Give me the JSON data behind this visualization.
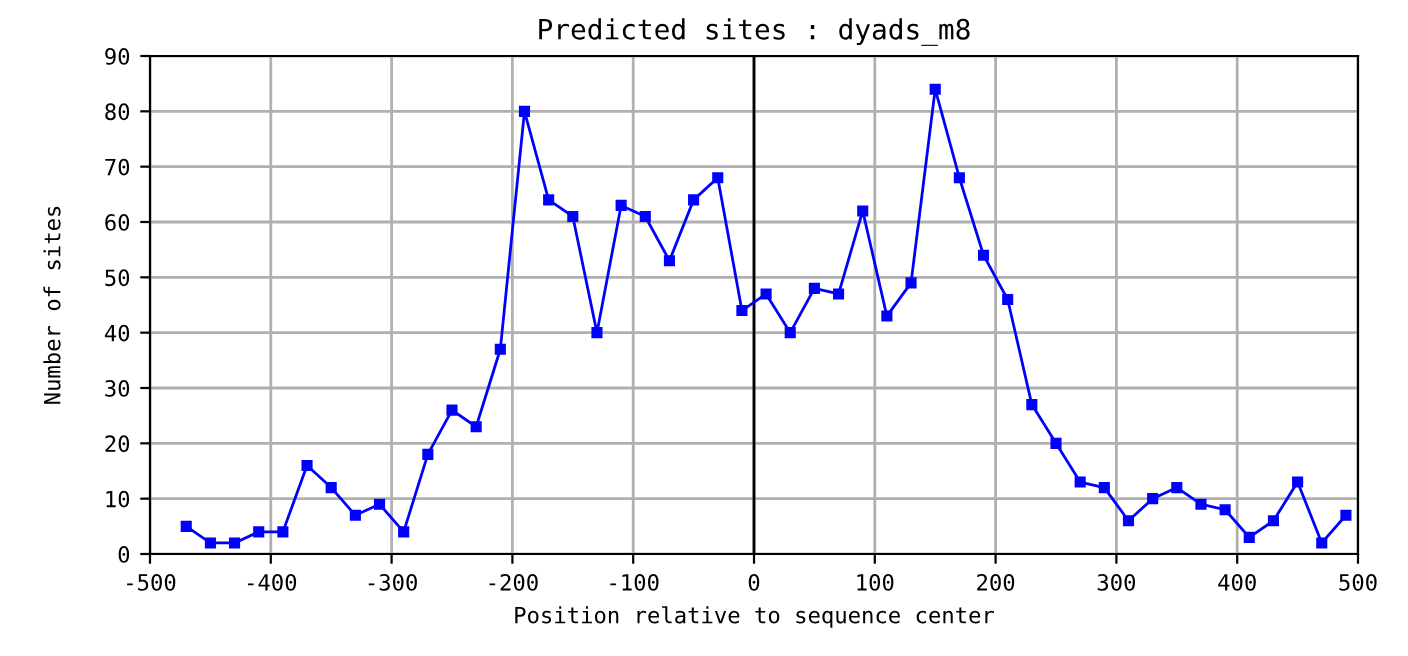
{
  "chart_data": {
    "type": "line",
    "title": "Predicted sites : dyads_m8",
    "xlabel": "Position relative to sequence center",
    "ylabel": "Number of sites",
    "x": [
      -470,
      -450,
      -430,
      -410,
      -390,
      -370,
      -350,
      -330,
      -310,
      -290,
      -270,
      -250,
      -230,
      -210,
      -190,
      -170,
      -150,
      -130,
      -110,
      -90,
      -70,
      -50,
      -30,
      -10,
      10,
      30,
      50,
      70,
      90,
      110,
      130,
      150,
      170,
      190,
      210,
      230,
      250,
      270,
      290,
      310,
      330,
      350,
      370,
      390,
      410,
      430,
      450,
      470,
      490
    ],
    "series": [
      {
        "color": "#0000ff",
        "values": [
          5,
          2,
          2,
          4,
          4,
          16,
          12,
          7,
          9,
          4,
          18,
          26,
          23,
          37,
          80,
          64,
          61,
          40,
          63,
          61,
          53,
          64,
          68,
          44,
          47,
          40,
          48,
          47,
          62,
          43,
          49,
          84,
          68,
          54,
          46,
          27,
          20,
          13,
          12,
          6,
          10,
          12,
          9,
          8,
          3,
          6,
          13,
          2,
          7
        ]
      }
    ],
    "xlim": [
      -500,
      500
    ],
    "xticks": [
      -500,
      -400,
      -300,
      -200,
      -100,
      0,
      100,
      200,
      300,
      400,
      500
    ],
    "ylim": [
      0,
      90
    ],
    "yticks": [
      0,
      10,
      20,
      30,
      40,
      50,
      60,
      70,
      80,
      90
    ],
    "grid": true,
    "marker": "square",
    "line_style": "solid",
    "ref_lines": [
      {
        "axis": "x",
        "value": 0,
        "color": "#000000"
      }
    ]
  }
}
